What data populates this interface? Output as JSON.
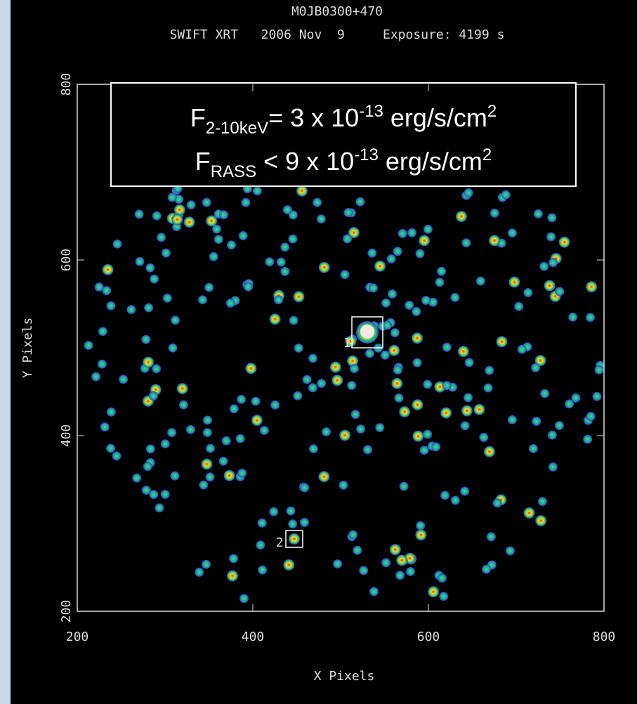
{
  "header": {
    "title": "M0JB0300+470",
    "subtitle": "SWIFT XRT   2006 Nov  9     Exposure: 4199 s"
  },
  "annotation": {
    "lines": [
      {
        "base": "F",
        "sub": "2-10keV",
        "middle": "= 3 x 10",
        "sup": "-13",
        "unit": " erg/s/cm",
        "unit_sup": "2"
      },
      {
        "base": "F",
        "sub": "RASS",
        "middle": " < 9 x 10",
        "sup": "-13",
        "unit": " erg/s/cm",
        "unit_sup": "2"
      }
    ]
  },
  "axes": {
    "xlabel": "X Pixels",
    "ylabel": "Y Pixels",
    "xlim": [
      200,
      800
    ],
    "ylim": [
      200,
      800
    ],
    "xticks": [
      200,
      400,
      600,
      800
    ],
    "yticks": [
      200,
      400,
      600,
      800
    ]
  },
  "sources": [
    {
      "label": "1"
    },
    {
      "label": "2"
    }
  ]
}
